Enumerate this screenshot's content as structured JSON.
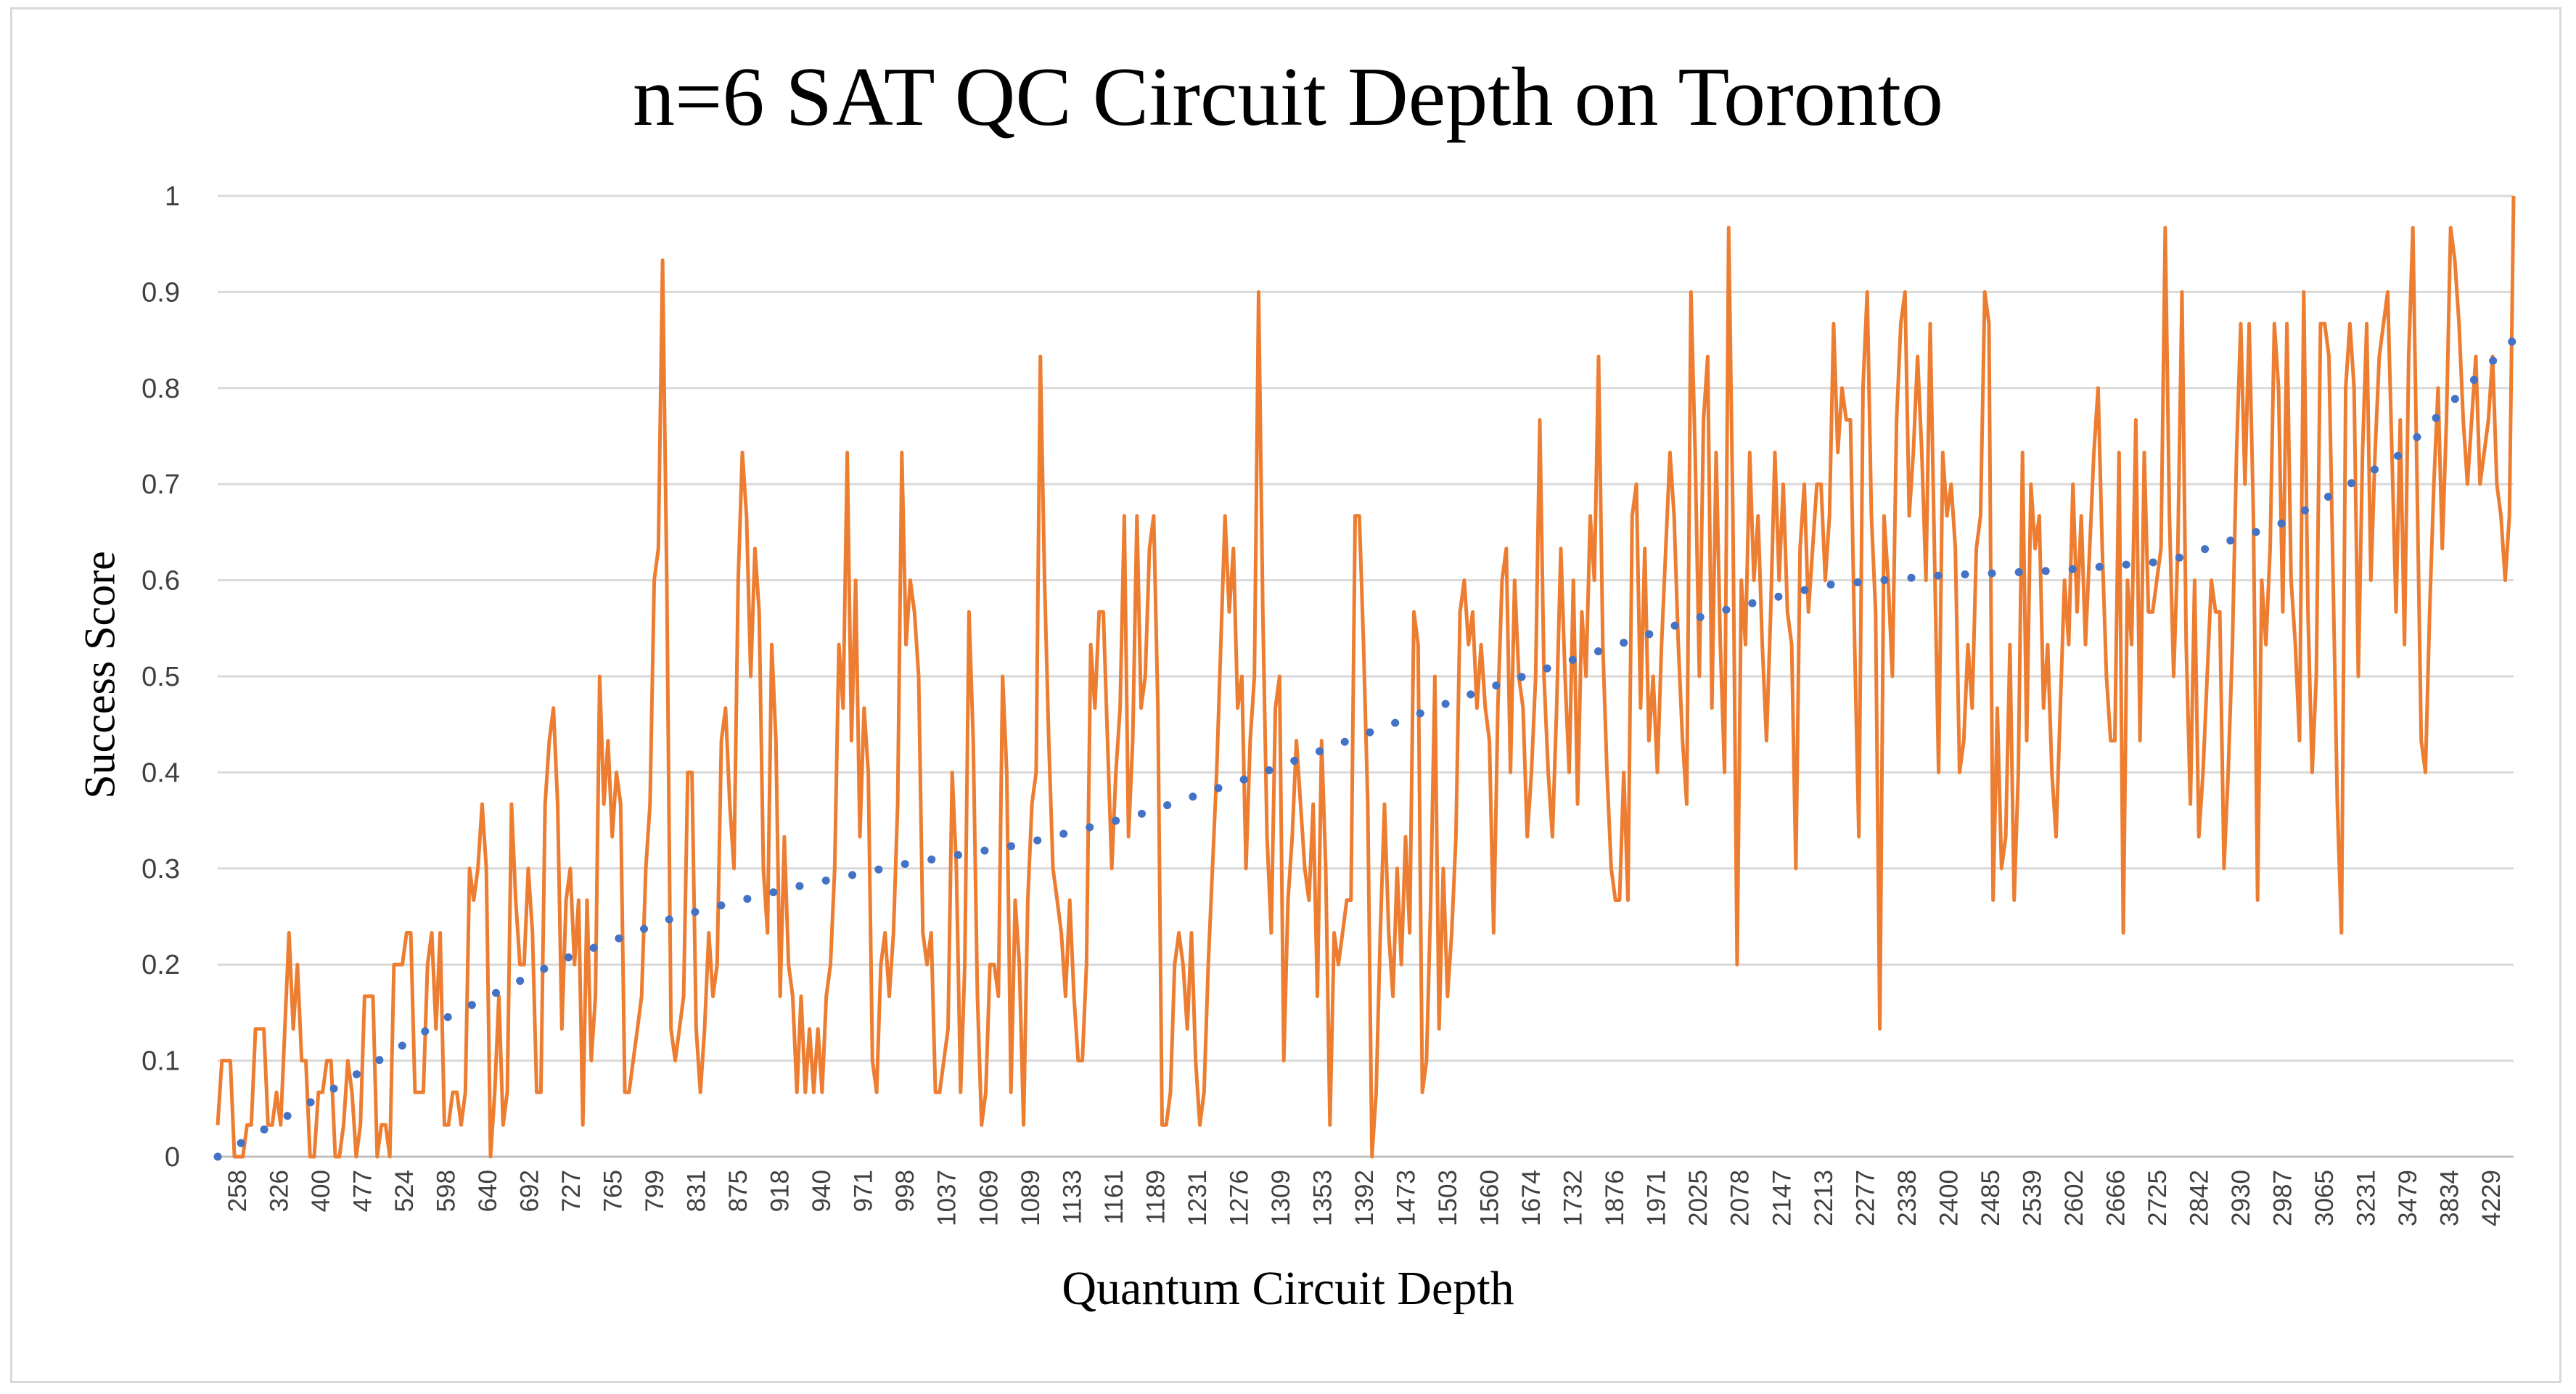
{
  "chart_data": {
    "type": "line",
    "title": "n=6 SAT QC Circuit Depth on Toronto",
    "xlabel": "Quantum Circuit Depth",
    "ylabel": "Success Score",
    "ylim": [
      0,
      1
    ],
    "yticks": [
      "0",
      "0.1",
      "0.2",
      "0.3",
      "0.4",
      "0.5",
      "0.6",
      "0.7",
      "0.8",
      "0.9",
      "1"
    ],
    "xtick_labels": [
      "258",
      "326",
      "400",
      "477",
      "524",
      "598",
      "640",
      "692",
      "727",
      "765",
      "799",
      "831",
      "875",
      "918",
      "940",
      "971",
      "998",
      "1037",
      "1069",
      "1089",
      "1133",
      "1161",
      "1189",
      "1231",
      "1276",
      "1309",
      "1353",
      "1392",
      "1473",
      "1503",
      "1560",
      "1674",
      "1732",
      "1876",
      "1971",
      "2025",
      "2078",
      "2147",
      "2213",
      "2277",
      "2338",
      "2400",
      "2485",
      "2539",
      "2602",
      "2666",
      "2725",
      "2842",
      "2930",
      "2987",
      "3065",
      "3231",
      "3479",
      "3834",
      "4229"
    ],
    "grid": true,
    "legend": "none",
    "series": [
      {
        "name": "Success Score",
        "style": "solid",
        "color": "#ED7D31",
        "values": [
          0.033,
          0.1,
          0.1,
          0.1,
          0.0,
          0.0,
          0.0,
          0.033,
          0.033,
          0.133,
          0.133,
          0.133,
          0.033,
          0.033,
          0.067,
          0.033,
          0.133,
          0.233,
          0.133,
          0.2,
          0.1,
          0.1,
          0.0,
          0.0,
          0.067,
          0.067,
          0.1,
          0.1,
          0.0,
          0.0,
          0.033,
          0.1,
          0.067,
          0.0,
          0.033,
          0.167,
          0.167,
          0.167,
          0.0,
          0.033,
          0.033,
          0.0,
          0.2,
          0.2,
          0.2,
          0.233,
          0.233,
          0.067,
          0.067,
          0.067,
          0.2,
          0.233,
          0.133,
          0.233,
          0.033,
          0.033,
          0.067,
          0.067,
          0.033,
          0.067,
          0.3,
          0.267,
          0.3,
          0.367,
          0.3,
          0.0,
          0.067,
          0.167,
          0.033,
          0.067,
          0.367,
          0.267,
          0.2,
          0.2,
          0.3,
          0.233,
          0.067,
          0.067,
          0.367,
          0.433,
          0.467,
          0.367,
          0.133,
          0.267,
          0.3,
          0.2,
          0.267,
          0.033,
          0.267,
          0.1,
          0.167,
          0.5,
          0.367,
          0.433,
          0.333,
          0.4,
          0.367,
          0.067,
          0.067,
          0.1,
          0.133,
          0.167,
          0.3,
          0.367,
          0.6,
          0.633,
          0.933,
          0.6,
          0.133,
          0.1,
          0.133,
          0.167,
          0.4,
          0.4,
          0.133,
          0.067,
          0.133,
          0.233,
          0.167,
          0.2,
          0.433,
          0.467,
          0.367,
          0.3,
          0.6,
          0.733,
          0.667,
          0.5,
          0.633,
          0.567,
          0.3,
          0.233,
          0.533,
          0.433,
          0.167,
          0.333,
          0.2,
          0.167,
          0.067,
          0.167,
          0.067,
          0.133,
          0.067,
          0.133,
          0.067,
          0.167,
          0.2,
          0.3,
          0.533,
          0.467,
          0.733,
          0.433,
          0.6,
          0.333,
          0.467,
          0.4,
          0.1,
          0.067,
          0.2,
          0.233,
          0.167,
          0.233,
          0.367,
          0.733,
          0.533,
          0.6,
          0.567,
          0.5,
          0.233,
          0.2,
          0.233,
          0.067,
          0.067,
          0.1,
          0.133,
          0.4,
          0.3,
          0.067,
          0.2,
          0.567,
          0.433,
          0.167,
          0.033,
          0.067,
          0.2,
          0.2,
          0.167,
          0.5,
          0.4,
          0.067,
          0.267,
          0.2,
          0.033,
          0.267,
          0.367,
          0.4,
          0.833,
          0.6,
          0.433,
          0.3,
          0.267,
          0.233,
          0.167,
          0.267,
          0.167,
          0.1,
          0.1,
          0.2,
          0.533,
          0.467,
          0.567,
          0.567,
          0.433,
          0.3,
          0.4,
          0.467,
          0.667,
          0.333,
          0.433,
          0.667,
          0.467,
          0.5,
          0.633,
          0.667,
          0.467,
          0.033,
          0.033,
          0.067,
          0.2,
          0.233,
          0.2,
          0.133,
          0.233,
          0.1,
          0.033,
          0.067,
          0.2,
          0.3,
          0.4,
          0.533,
          0.667,
          0.567,
          0.633,
          0.467,
          0.5,
          0.3,
          0.433,
          0.5,
          0.9,
          0.567,
          0.333,
          0.233,
          0.467,
          0.5,
          0.1,
          0.267,
          0.333,
          0.433,
          0.367,
          0.3,
          0.267,
          0.367,
          0.167,
          0.433,
          0.3,
          0.033,
          0.233,
          0.2,
          0.233,
          0.267,
          0.267,
          0.667,
          0.667,
          0.533,
          0.367,
          0.0,
          0.067,
          0.233,
          0.367,
          0.233,
          0.167,
          0.3,
          0.2,
          0.333,
          0.233,
          0.567,
          0.533,
          0.067,
          0.1,
          0.267,
          0.5,
          0.133,
          0.3,
          0.167,
          0.233,
          0.333,
          0.567,
          0.6,
          0.533,
          0.567,
          0.467,
          0.533,
          0.467,
          0.433,
          0.233,
          0.467,
          0.6,
          0.633,
          0.4,
          0.6,
          0.5,
          0.467,
          0.333,
          0.4,
          0.5,
          0.767,
          0.5,
          0.4,
          0.333,
          0.467,
          0.633,
          0.5,
          0.4,
          0.6,
          0.367,
          0.567,
          0.5,
          0.667,
          0.6,
          0.833,
          0.533,
          0.4,
          0.3,
          0.267,
          0.267,
          0.4,
          0.267,
          0.667,
          0.7,
          0.467,
          0.633,
          0.433,
          0.5,
          0.4,
          0.533,
          0.633,
          0.733,
          0.667,
          0.533,
          0.433,
          0.367,
          0.9,
          0.733,
          0.5,
          0.767,
          0.833,
          0.467,
          0.733,
          0.533,
          0.4,
          0.967,
          0.667,
          0.2,
          0.6,
          0.533,
          0.733,
          0.6,
          0.667,
          0.533,
          0.433,
          0.567,
          0.733,
          0.6,
          0.7,
          0.567,
          0.533,
          0.3,
          0.633,
          0.7,
          0.567,
          0.633,
          0.7,
          0.7,
          0.6,
          0.667,
          0.867,
          0.733,
          0.8,
          0.767,
          0.767,
          0.533,
          0.333,
          0.8,
          0.9,
          0.667,
          0.567,
          0.133,
          0.667,
          0.6,
          0.5,
          0.767,
          0.867,
          0.9,
          0.667,
          0.733,
          0.833,
          0.733,
          0.6,
          0.867,
          0.633,
          0.4,
          0.733,
          0.667,
          0.7,
          0.633,
          0.4,
          0.433,
          0.533,
          0.467,
          0.633,
          0.667,
          0.9,
          0.867,
          0.267,
          0.467,
          0.3,
          0.333,
          0.533,
          0.267,
          0.4,
          0.733,
          0.433,
          0.7,
          0.633,
          0.667,
          0.467,
          0.533,
          0.4,
          0.333,
          0.467,
          0.6,
          0.533,
          0.7,
          0.567,
          0.667,
          0.533,
          0.633,
          0.733,
          0.8,
          0.633,
          0.5,
          0.433,
          0.433,
          0.733,
          0.233,
          0.6,
          0.533,
          0.767,
          0.433,
          0.733,
          0.567,
          0.567,
          0.6,
          0.633,
          0.967,
          0.667,
          0.5,
          0.633,
          0.9,
          0.533,
          0.367,
          0.6,
          0.333,
          0.4,
          0.5,
          0.6,
          0.567,
          0.567,
          0.3,
          0.4,
          0.533,
          0.733,
          0.867,
          0.7,
          0.867,
          0.667,
          0.267,
          0.6,
          0.533,
          0.633,
          0.867,
          0.8,
          0.567,
          0.867,
          0.6,
          0.533,
          0.433,
          0.9,
          0.567,
          0.4,
          0.5,
          0.867,
          0.867,
          0.833,
          0.6,
          0.367,
          0.233,
          0.8,
          0.867,
          0.8,
          0.5,
          0.733,
          0.867,
          0.6,
          0.733,
          0.833,
          0.867,
          0.9,
          0.733,
          0.567,
          0.767,
          0.533,
          0.833,
          0.967,
          0.7,
          0.433,
          0.4,
          0.567,
          0.7,
          0.8,
          0.633,
          0.767,
          0.967,
          0.933,
          0.867,
          0.767,
          0.7,
          0.767,
          0.833,
          0.7,
          0.733,
          0.767,
          0.833,
          0.7,
          0.667,
          0.6,
          0.667,
          1.0
        ]
      },
      {
        "name": "Trend",
        "style": "dotted",
        "color": "#4472C4",
        "x_fraction": [
          0.0,
          0.05,
          0.1,
          0.15,
          0.2,
          0.25,
          0.3,
          0.35,
          0.4,
          0.45,
          0.5,
          0.55,
          0.6,
          0.65,
          0.7,
          0.75,
          0.8,
          0.85,
          0.9,
          0.95,
          1.0
        ],
        "values": [
          0.0,
          0.07,
          0.145,
          0.205,
          0.25,
          0.28,
          0.305,
          0.325,
          0.355,
          0.395,
          0.44,
          0.485,
          0.525,
          0.565,
          0.595,
          0.605,
          0.61,
          0.62,
          0.66,
          0.73,
          0.85
        ]
      }
    ]
  }
}
